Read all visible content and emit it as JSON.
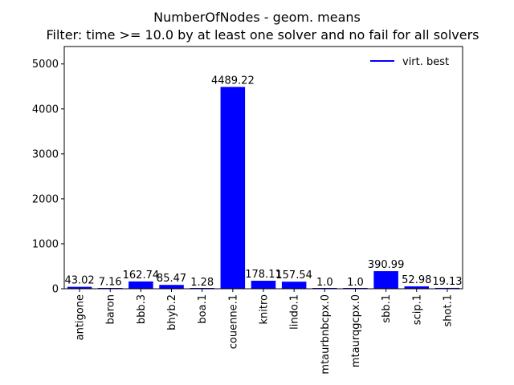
{
  "chart_data": {
    "type": "bar",
    "title": "NumberOfNodes - geom. means",
    "subtitle": "Filter: time >= 10.0 by at least one solver and no fail for all solvers",
    "categories": [
      "antigone",
      "baron",
      "bbb.3",
      "bhyb.2",
      "boa.1",
      "couenne.1",
      "knitro",
      "lindo.1",
      "mtaurbnbcpx.0",
      "mtaurqgcpx.0",
      "sbb.1",
      "scip.1",
      "shot.1"
    ],
    "values": [
      43.02,
      7.16,
      162.74,
      85.47,
      1.28,
      4489.22,
      178.11,
      157.54,
      1.0,
      1.0,
      390.99,
      52.98,
      19.13
    ],
    "value_labels": [
      "43.02",
      "7.16",
      "162.74",
      "85.47",
      "1.28",
      "4489.22",
      "178.11",
      "157.54",
      "1.0",
      "1.0",
      "390.99",
      "52.98",
      "19.13"
    ],
    "series": [
      {
        "name": "virt. best",
        "color": "#0000ff"
      }
    ],
    "xlabel": "",
    "ylabel": "",
    "ylim": [
      0,
      5388
    ],
    "yticks": [
      0,
      1000,
      2000,
      3000,
      4000,
      5000
    ],
    "ytick_labels": [
      "0",
      "1000",
      "2000",
      "3000",
      "4000",
      "5000"
    ],
    "grid": false,
    "legend_position": "top-right"
  }
}
